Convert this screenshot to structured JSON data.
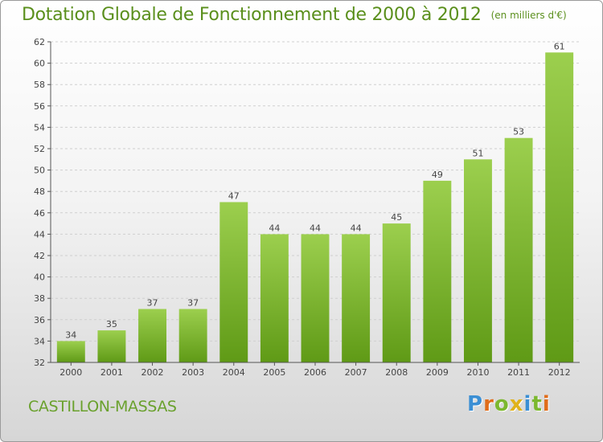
{
  "chart_data": {
    "type": "bar",
    "title": "Dotation Globale de Fonctionnement de 2000 à 2012",
    "unit": "(en milliers d'€)",
    "categories": [
      "2000",
      "2001",
      "2002",
      "2003",
      "2004",
      "2005",
      "2006",
      "2007",
      "2008",
      "2009",
      "2010",
      "2011",
      "2012"
    ],
    "values": [
      34,
      35,
      37,
      37,
      47,
      44,
      44,
      44,
      45,
      49,
      51,
      53,
      61
    ],
    "data_labels": [
      "34",
      "35",
      "37",
      "37",
      "47",
      "44",
      "44",
      "44",
      "45",
      "49",
      "51",
      "53",
      "61"
    ],
    "ylim": [
      32,
      62
    ],
    "yticks": [
      32,
      34,
      36,
      38,
      40,
      42,
      44,
      46,
      48,
      50,
      52,
      54,
      56,
      58,
      60,
      62
    ],
    "ytick_labels": [
      "32",
      "34",
      "36",
      "38",
      "40",
      "42",
      "44",
      "46",
      "48",
      "50",
      "52",
      "54",
      "56",
      "58",
      "60",
      "62"
    ],
    "grid": true,
    "xlabel": "",
    "ylabel": "",
    "colors": {
      "bar_top": "#9ccf4e",
      "bar_bottom": "#5f9a16",
      "title": "#5a8f1c",
      "grid": "#cfcfcf",
      "axis": "#555555",
      "text": "#444444"
    }
  },
  "footer": {
    "commune": "CASTILLON-MASSAS",
    "brand": "Proxiti",
    "brand_colors": [
      "#3b8fd4",
      "#e06d1b",
      "#7cb82f",
      "#e0b21b",
      "#3b8fd4",
      "#7cb82f",
      "#e06d1b"
    ]
  }
}
